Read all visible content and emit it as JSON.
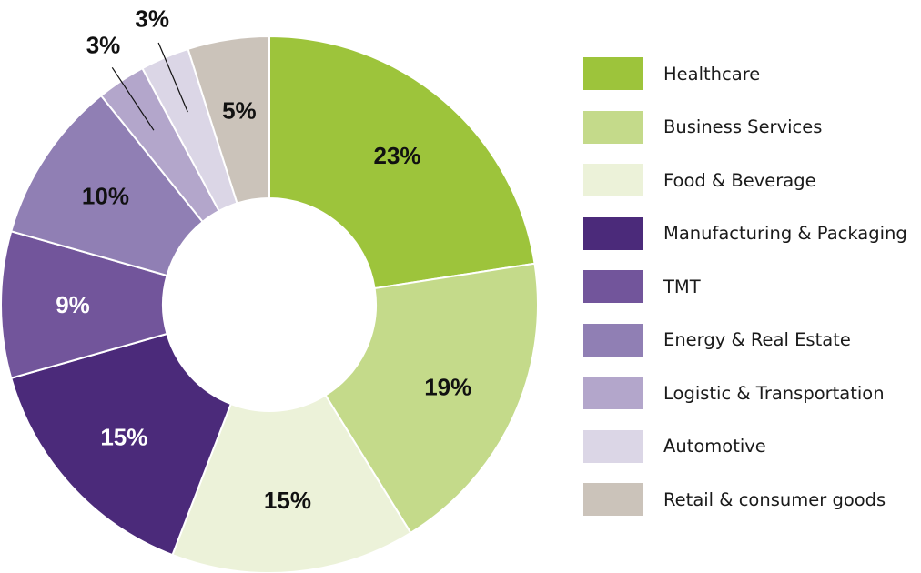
{
  "chart_data": {
    "type": "pie",
    "donut": true,
    "title": "",
    "legend_position": "right",
    "categories": [
      "Healthcare",
      "Business Services",
      "Food & Beverage",
      "Manufacturing & Packaging",
      "TMT",
      "Energy & Real Estate",
      "Logistic & Transportation",
      "Automotive",
      "Retail & consumer goods"
    ],
    "values": [
      23,
      19,
      15,
      15,
      9,
      10,
      3,
      3,
      5
    ],
    "labels": [
      "23%",
      "19%",
      "15%",
      "15%",
      "9%",
      "10%",
      "3%",
      "3%",
      "5%"
    ],
    "colors": [
      "#9dc43b",
      "#c4da8a",
      "#ecf2d9",
      "#4b2a7a",
      "#72559b",
      "#907fb4",
      "#b3a6cb",
      "#dbd6e6",
      "#cbc3ba"
    ],
    "label_colors": [
      "#111111",
      "#111111",
      "#111111",
      "#ffffff",
      "#ffffff",
      "#111111",
      "#111111",
      "#111111",
      "#111111"
    ]
  }
}
